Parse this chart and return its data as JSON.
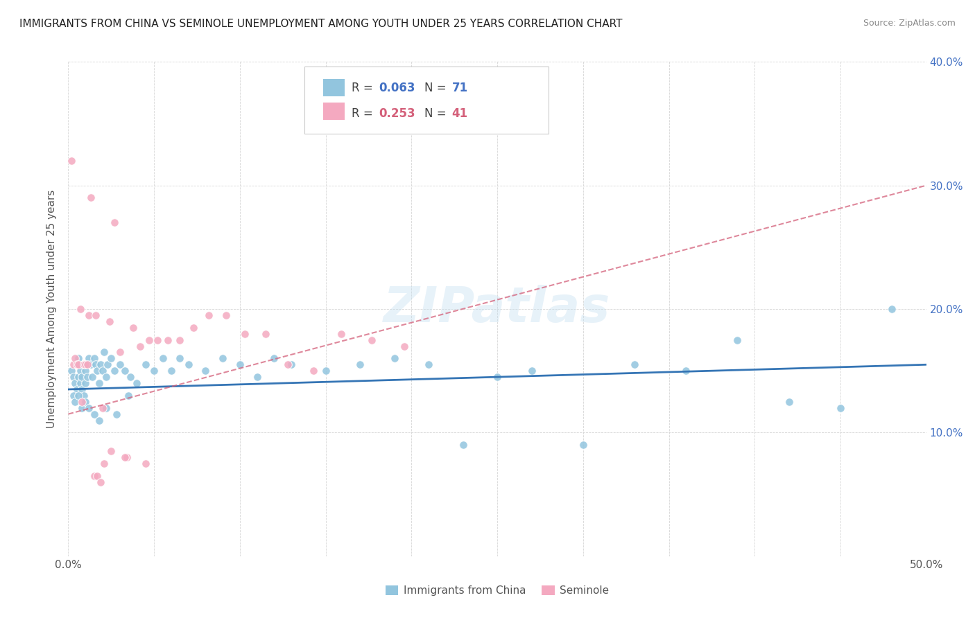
{
  "title": "IMMIGRANTS FROM CHINA VS SEMINOLE UNEMPLOYMENT AMONG YOUTH UNDER 25 YEARS CORRELATION CHART",
  "source": "Source: ZipAtlas.com",
  "ylabel": "Unemployment Among Youth under 25 years",
  "xlim": [
    0,
    0.5
  ],
  "ylim": [
    0,
    0.4
  ],
  "blue_color": "#92c5de",
  "pink_color": "#f4a9c0",
  "blue_line_color": "#3575b5",
  "pink_line_color": "#d4607a",
  "watermark": "ZIPatlas",
  "blue_scatter_x": [
    0.002,
    0.003,
    0.004,
    0.005,
    0.005,
    0.006,
    0.006,
    0.007,
    0.007,
    0.008,
    0.008,
    0.009,
    0.009,
    0.01,
    0.01,
    0.011,
    0.012,
    0.013,
    0.014,
    0.015,
    0.016,
    0.017,
    0.018,
    0.019,
    0.02,
    0.021,
    0.022,
    0.023,
    0.025,
    0.027,
    0.03,
    0.033,
    0.036,
    0.04,
    0.045,
    0.05,
    0.055,
    0.06,
    0.065,
    0.07,
    0.08,
    0.09,
    0.1,
    0.11,
    0.12,
    0.13,
    0.15,
    0.17,
    0.19,
    0.21,
    0.23,
    0.25,
    0.27,
    0.3,
    0.33,
    0.36,
    0.39,
    0.42,
    0.45,
    0.48,
    0.003,
    0.004,
    0.006,
    0.008,
    0.01,
    0.012,
    0.015,
    0.018,
    0.022,
    0.028,
    0.035
  ],
  "blue_scatter_y": [
    0.15,
    0.145,
    0.14,
    0.155,
    0.135,
    0.145,
    0.16,
    0.14,
    0.15,
    0.135,
    0.145,
    0.13,
    0.155,
    0.14,
    0.15,
    0.145,
    0.16,
    0.155,
    0.145,
    0.16,
    0.155,
    0.15,
    0.14,
    0.155,
    0.15,
    0.165,
    0.145,
    0.155,
    0.16,
    0.15,
    0.155,
    0.15,
    0.145,
    0.14,
    0.155,
    0.15,
    0.16,
    0.15,
    0.16,
    0.155,
    0.15,
    0.16,
    0.155,
    0.145,
    0.16,
    0.155,
    0.15,
    0.155,
    0.16,
    0.155,
    0.09,
    0.145,
    0.15,
    0.09,
    0.155,
    0.15,
    0.175,
    0.125,
    0.12,
    0.2,
    0.13,
    0.125,
    0.13,
    0.12,
    0.125,
    0.12,
    0.115,
    0.11,
    0.12,
    0.115,
    0.13
  ],
  "pink_scatter_x": [
    0.002,
    0.003,
    0.004,
    0.005,
    0.006,
    0.007,
    0.008,
    0.009,
    0.01,
    0.011,
    0.012,
    0.013,
    0.015,
    0.017,
    0.019,
    0.021,
    0.024,
    0.027,
    0.03,
    0.034,
    0.038,
    0.042,
    0.047,
    0.052,
    0.058,
    0.065,
    0.073,
    0.082,
    0.092,
    0.103,
    0.115,
    0.128,
    0.143,
    0.159,
    0.177,
    0.196,
    0.016,
    0.02,
    0.025,
    0.033,
    0.045
  ],
  "pink_scatter_y": [
    0.32,
    0.155,
    0.16,
    0.155,
    0.155,
    0.2,
    0.125,
    0.155,
    0.155,
    0.155,
    0.195,
    0.29,
    0.065,
    0.065,
    0.06,
    0.075,
    0.19,
    0.27,
    0.165,
    0.08,
    0.185,
    0.17,
    0.175,
    0.175,
    0.175,
    0.175,
    0.185,
    0.195,
    0.195,
    0.18,
    0.18,
    0.155,
    0.15,
    0.18,
    0.175,
    0.17,
    0.195,
    0.12,
    0.085,
    0.08,
    0.075
  ]
}
